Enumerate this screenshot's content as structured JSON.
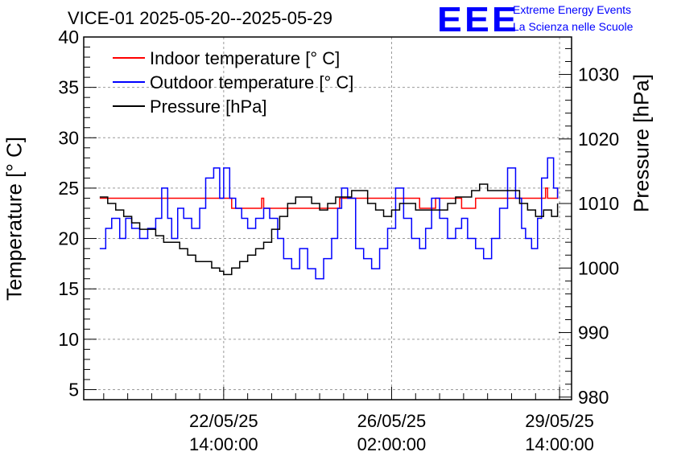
{
  "header": {
    "title": "VICE-01 2025-05-20--2025-05-29",
    "logo_text": "EEE",
    "logo_line1": "Extreme Energy Events",
    "logo_line2": "La Scienza nelle Scuole"
  },
  "colors": {
    "indoor": "#ff0000",
    "outdoor": "#0000ff",
    "pressure": "#000000",
    "grid": "#9a9a9a"
  },
  "chart_data": {
    "type": "line",
    "title": "VICE-01 2025-05-20--2025-05-29",
    "xlabel": "",
    "ylabel_left": "Temperature [° C]",
    "ylabel_right": "Pressure [hPa]",
    "x_unit": "hours since 2025-05-20 00:00",
    "xlim": [
      -8,
      236
    ],
    "ylim_left": [
      4,
      40
    ],
    "ylim_right": [
      979.6,
      1035.8
    ],
    "y_ticks_left": [
      5,
      10,
      15,
      20,
      25,
      30,
      35,
      40
    ],
    "y_ticks_right": [
      980,
      990,
      1000,
      1010,
      1020,
      1030
    ],
    "x_ticks": [
      {
        "x": 62,
        "line1": "22/05/25",
        "line2": "14:00:00"
      },
      {
        "x": 146,
        "line1": "26/05/25",
        "line2": "02:00:00"
      },
      {
        "x": 230,
        "line1": "29/05/25",
        "line2": "14:00:00"
      }
    ],
    "grid": true,
    "legend_position": "top-left",
    "legend": [
      {
        "label": "Indoor temperature [° C]",
        "series": "indoor"
      },
      {
        "label": "Outdoor temperature [° C]",
        "series": "outdoor"
      },
      {
        "label": "Pressure [hPa]",
        "series": "pressure"
      }
    ],
    "series": [
      {
        "name": "Indoor temperature [° C]",
        "key": "indoor",
        "axis": "left",
        "x": [
          0,
          66,
          66,
          81,
          81,
          82,
          82,
          120,
          120,
          160,
          160,
          168,
          168,
          181,
          181,
          188,
          188,
          223,
          223,
          224,
          224,
          229
        ],
        "y": [
          24,
          24,
          23,
          23,
          24,
          24,
          23,
          23,
          24,
          24,
          23,
          23,
          24,
          24,
          23,
          23,
          24,
          24,
          25,
          25,
          24,
          25
        ]
      },
      {
        "name": "Outdoor temperature [° C]",
        "key": "outdoor",
        "axis": "left",
        "x": [
          0,
          3,
          6,
          10,
          13,
          16,
          20,
          24,
          28,
          31,
          34,
          36,
          39,
          42,
          46,
          50,
          53,
          57,
          60,
          62,
          65,
          68,
          71,
          74,
          78,
          82,
          85,
          89,
          92,
          96,
          100,
          104,
          108,
          112,
          116,
          119,
          121,
          124,
          128,
          132,
          136,
          140,
          144,
          148,
          152,
          156,
          160,
          163,
          166,
          170,
          174,
          178,
          181,
          184,
          188,
          192,
          196,
          200,
          204,
          208,
          211,
          213,
          216,
          219,
          221,
          224,
          227,
          229
        ],
        "y": [
          19,
          21,
          22,
          20,
          22,
          21,
          20,
          21,
          22,
          25,
          22,
          20,
          23,
          22,
          21,
          23,
          26,
          27,
          24,
          27,
          24,
          23,
          22,
          21,
          22,
          23,
          22,
          20,
          18,
          17,
          19,
          17,
          16,
          18,
          20,
          23,
          25,
          24,
          19,
          18,
          17,
          19,
          21,
          25,
          22,
          20,
          19,
          21,
          24,
          22,
          20,
          21,
          22,
          20,
          19,
          18,
          20,
          23,
          27,
          24,
          21,
          20,
          19,
          22,
          26,
          28,
          25,
          24
        ]
      },
      {
        "name": "Pressure [hPa]",
        "key": "pressure",
        "axis": "right",
        "x": [
          0,
          4,
          8,
          12,
          16,
          20,
          24,
          28,
          32,
          36,
          40,
          44,
          48,
          52,
          56,
          60,
          62,
          66,
          70,
          74,
          78,
          82,
          86,
          90,
          94,
          98,
          102,
          106,
          110,
          114,
          118,
          122,
          126,
          130,
          134,
          138,
          142,
          146,
          150,
          154,
          158,
          162,
          166,
          170,
          174,
          178,
          182,
          186,
          190,
          194,
          198,
          202,
          206,
          210,
          214,
          218,
          222,
          226,
          229
        ],
        "y": [
          1011,
          1010,
          1009,
          1008,
          1007,
          1006,
          1006,
          1005,
          1004,
          1004,
          1003,
          1002,
          1001,
          1001,
          1000,
          999.5,
          999,
          1000,
          1001,
          1002,
          1003,
          1004,
          1006,
          1008,
          1010,
          1011,
          1011,
          1010,
          1009,
          1010,
          1011,
          1011,
          1012,
          1012,
          1010,
          1009,
          1008,
          1009,
          1010,
          1010,
          1009,
          1009,
          1009,
          1009,
          1010,
          1011,
          1011,
          1012,
          1013,
          1012,
          1012,
          1012,
          1012,
          1010,
          1009,
          1008,
          1009,
          1008,
          1010
        ]
      }
    ]
  }
}
